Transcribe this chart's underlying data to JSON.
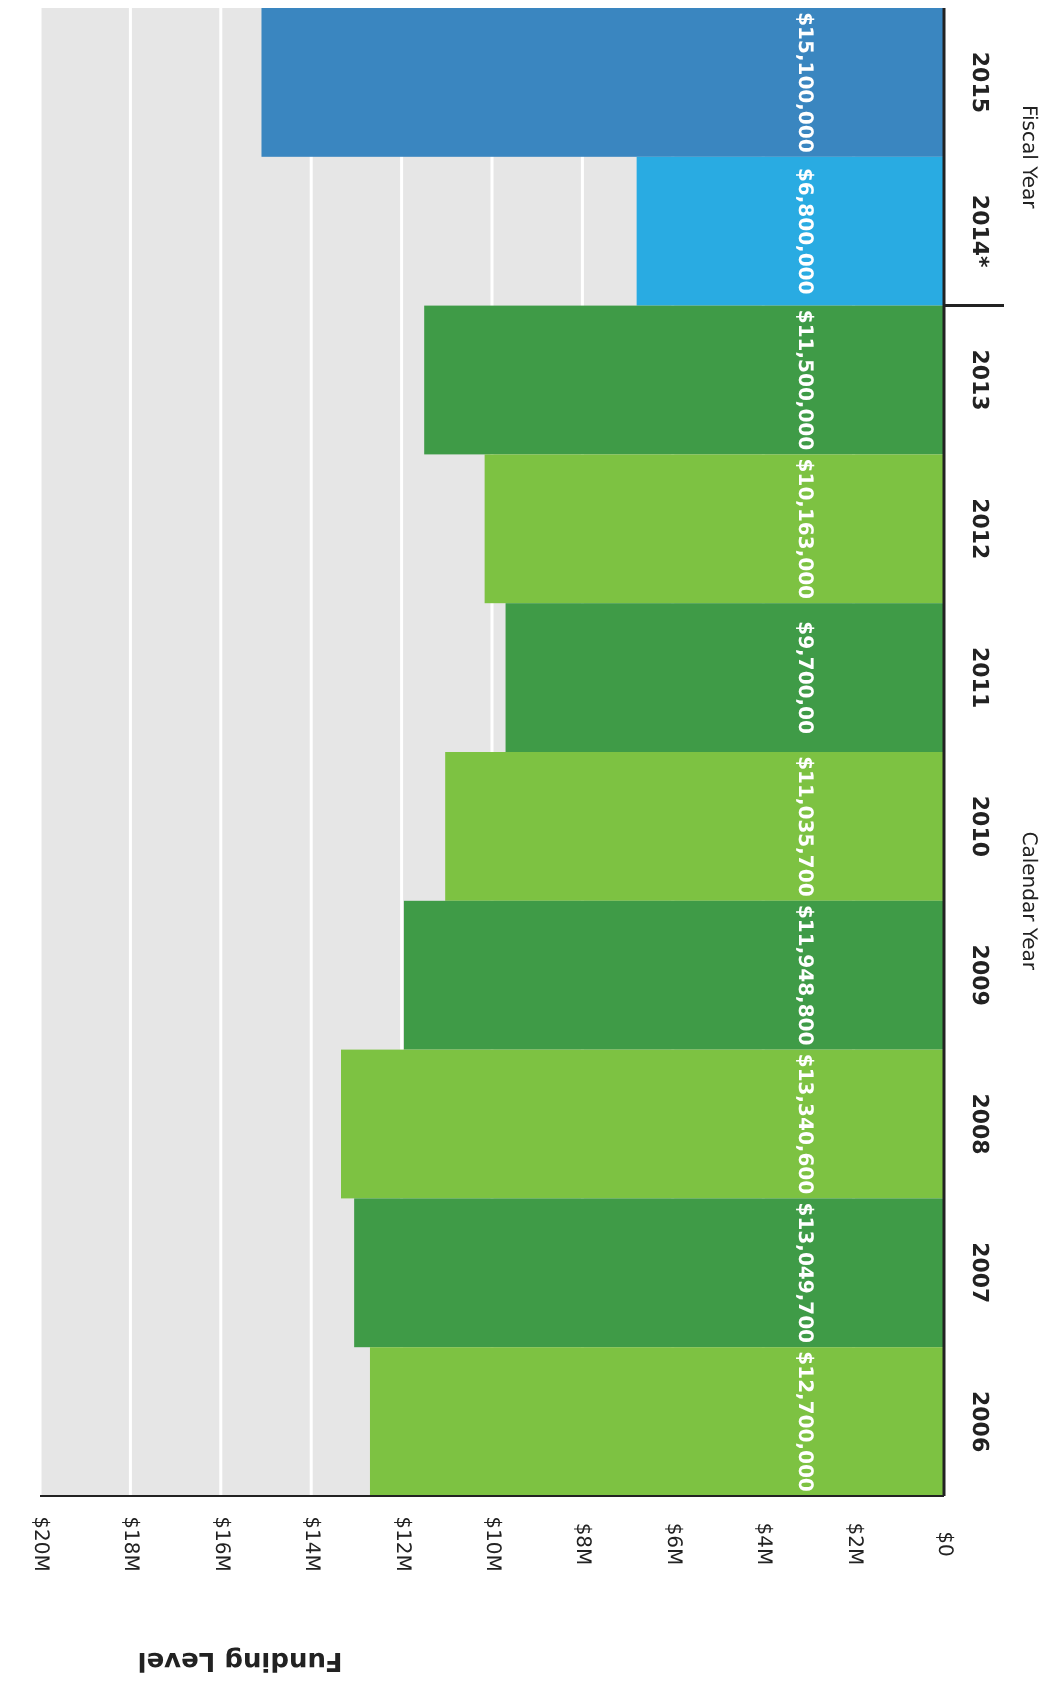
{
  "chart_data": {
    "type": "bar",
    "orientation": "horizontal",
    "xlabel": "Funding Level",
    "categories": [
      "2015",
      "2014*",
      "2013",
      "2012",
      "2011",
      "2010",
      "2009",
      "2008",
      "2007",
      "2006"
    ],
    "values": [
      15100000,
      6800000,
      11500000,
      10163000,
      9700000,
      11035700,
      11948800,
      13340600,
      13049700,
      12700000
    ],
    "colors": [
      "#3a86c0",
      "#29abe2",
      "#3f9b47",
      "#7dc242",
      "#3f9b47",
      "#7dc242",
      "#3f9b47",
      "#7dc242",
      "#3f9b47",
      "#7dc242"
    ],
    "value_labels": [
      "$15,100,000",
      "$6,800,000",
      "$11,500,000",
      "$10,163,000",
      "$9,700,00",
      "$11,035,700",
      "$11,948,800",
      "$13,340,600",
      "$13,049,700",
      "$12,700,000"
    ],
    "xlim": [
      20000000,
      0
    ],
    "xticks": [
      {
        "value": 20000000,
        "label": "$20M"
      },
      {
        "value": 18000000,
        "label": "$18M"
      },
      {
        "value": 16000000,
        "label": "$16M"
      },
      {
        "value": 14000000,
        "label": "$14M"
      },
      {
        "value": 12000000,
        "label": "$12M"
      },
      {
        "value": 10000000,
        "label": "$10M"
      },
      {
        "value": 8000000,
        "label": "$8M"
      },
      {
        "value": 6000000,
        "label": "$6M"
      },
      {
        "value": 4000000,
        "label": "$4M"
      },
      {
        "value": 2000000,
        "label": "$2M"
      },
      {
        "value": 0,
        "label": "$0"
      }
    ],
    "grid": true,
    "annotations": [
      "Fiscal Year",
      "Calendar Year"
    ]
  }
}
